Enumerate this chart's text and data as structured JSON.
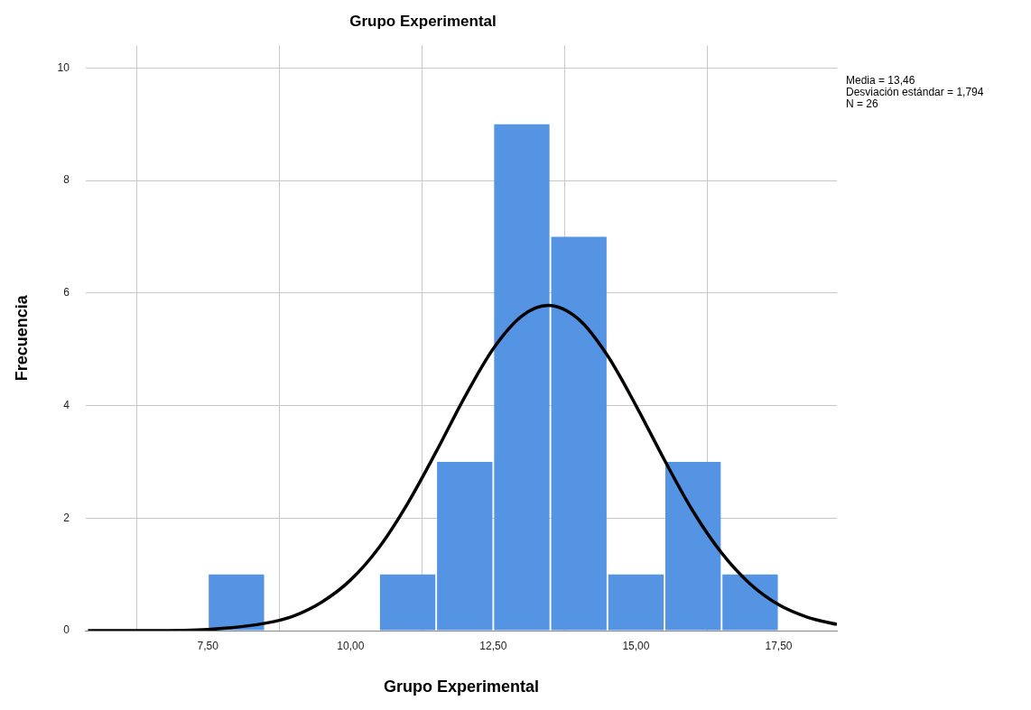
{
  "chart_data": {
    "type": "histogram",
    "title": "Grupo Experimental",
    "xlabel": "Grupo Experimental",
    "ylabel": "Frecuencia",
    "annotations": [
      "Media = 13,46",
      "Desviación estándar = 1,794",
      "N = 26"
    ],
    "series": [
      {
        "color": "#5593e3",
        "bins": [
          7.5,
          8.5,
          9.5,
          10.5,
          11.5,
          12.5,
          13.5,
          14.5,
          15.5,
          16.5,
          17.5
        ],
        "values": [
          1,
          0,
          0,
          1,
          3,
          9,
          7,
          1,
          3,
          1
        ]
      },
      {
        "type": "line",
        "color": "#000000",
        "x": [
          5.4,
          6.5,
          7.5,
          8.5,
          9,
          9.5,
          10,
          10.5,
          11,
          11.5,
          12,
          12.5,
          13,
          13.46,
          14,
          14.5,
          15,
          15.5,
          16,
          16.5,
          17,
          17.5,
          18,
          18.52
        ],
        "values": [
          0,
          0,
          0.02,
          0.13,
          0.26,
          0.51,
          0.9,
          1.48,
          2.26,
          3.18,
          4.15,
          5.01,
          5.59,
          5.78,
          5.53,
          4.89,
          4,
          3.03,
          2.12,
          1.38,
          0.83,
          0.46,
          0.24,
          0.11
        ]
      }
    ],
    "xlim": [
      5.36,
      18.52
    ],
    "xticks": [
      {
        "value": 7.5,
        "label": "7,50"
      },
      {
        "value": 10,
        "label": "10,00"
      },
      {
        "value": 12.5,
        "label": "12,50"
      },
      {
        "value": 15,
        "label": "15,00"
      },
      {
        "value": 17.5,
        "label": "17,50"
      }
    ],
    "ylim": [
      0,
      10.4
    ],
    "yticks": [
      0,
      2,
      4,
      6,
      8,
      10
    ],
    "grid": true,
    "marker": "none",
    "line_style": "solid"
  }
}
